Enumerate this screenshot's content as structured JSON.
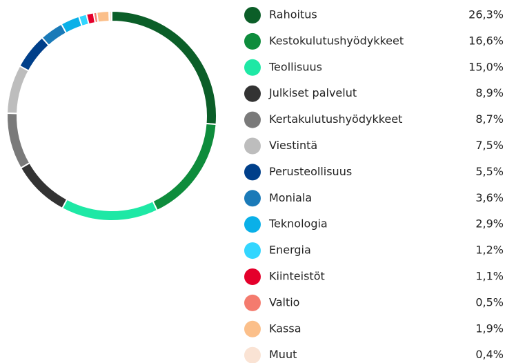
{
  "chart_data": {
    "type": "pie",
    "donut": true,
    "categories": [
      "Rahoitus",
      "Kestokulutushyödykkeet",
      "Teollisuus",
      "Julkiset palvelut",
      "Kertakulutushyödykkeet",
      "Viestintä",
      "Perusteollisuus",
      "Moniala",
      "Teknologia",
      "Energia",
      "Kiinteistöt",
      "Valtio",
      "Kassa",
      "Muut"
    ],
    "values": [
      26.3,
      16.6,
      15.0,
      8.9,
      8.7,
      7.5,
      5.5,
      3.6,
      2.9,
      1.2,
      1.1,
      0.5,
      1.9,
      0.4
    ],
    "value_labels": [
      "26,3%",
      "16,6%",
      "15,0%",
      "8,9%",
      "8,7%",
      "7,5%",
      "5,5%",
      "3,6%",
      "2,9%",
      "1,2%",
      "1,1%",
      "0,5%",
      "1,9%",
      "0,4%"
    ],
    "colors": [
      "#0b5e28",
      "#0e8c3c",
      "#1ee8a5",
      "#333333",
      "#7a7a7a",
      "#bdbdbd",
      "#003f8a",
      "#1a7ab8",
      "#0ab0e8",
      "#33d6ff",
      "#e4002b",
      "#f47b6e",
      "#fbbf8a",
      "#fae3d4"
    ]
  }
}
